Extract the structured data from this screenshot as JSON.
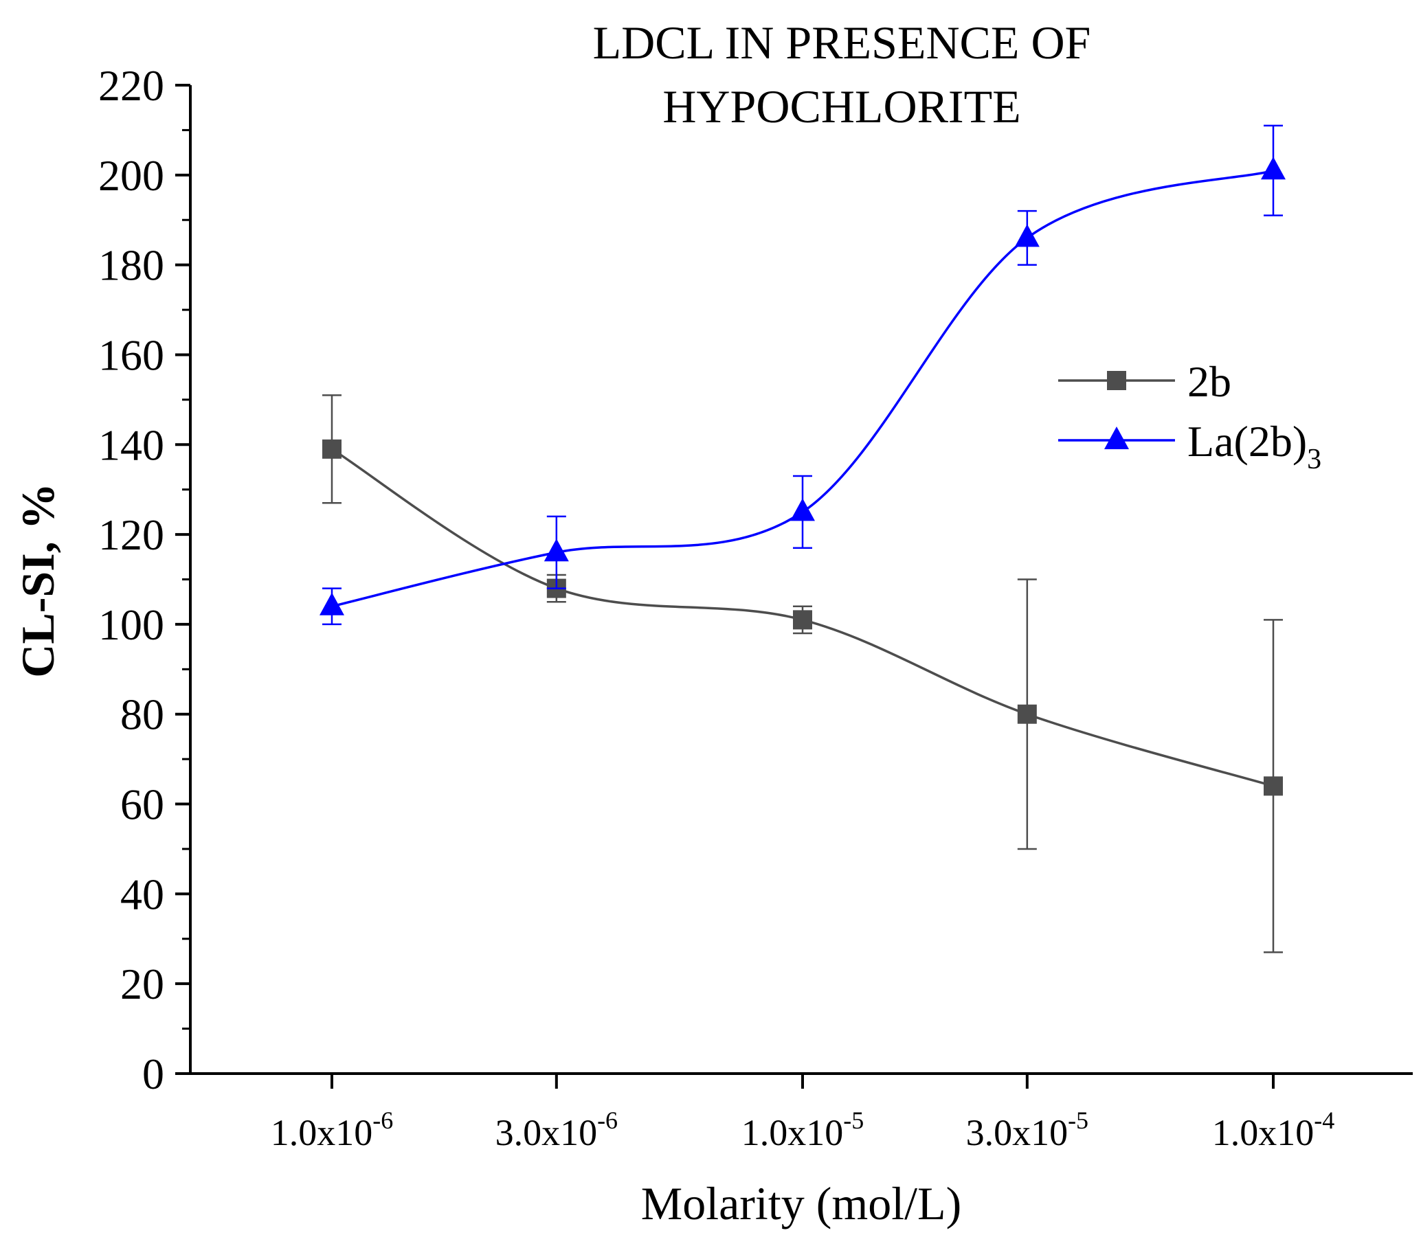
{
  "chart_data": {
    "type": "line",
    "title_lines": [
      "LDCL IN PRESENCE OF",
      "HYPOCHLORITE"
    ],
    "xlabel": "Molarity (mol/L)",
    "ylabel": "CL-SI, %",
    "x_scale": "log",
    "x": [
      1e-06,
      3e-06,
      1e-05,
      3e-05,
      0.0001
    ],
    "x_tick_labels": [
      {
        "mantissa": "1.0x10",
        "exp": "-6"
      },
      {
        "mantissa": "3.0x10",
        "exp": "-6"
      },
      {
        "mantissa": "1.0x10",
        "exp": "-5"
      },
      {
        "mantissa": "3.0x10",
        "exp": "-5"
      },
      {
        "mantissa": "1.0x10",
        "exp": "-4"
      }
    ],
    "ylim": [
      0,
      220
    ],
    "y_ticks": [
      0,
      20,
      40,
      60,
      80,
      100,
      120,
      140,
      160,
      180,
      200,
      220
    ],
    "grid": false,
    "legend_position": "right",
    "series": [
      {
        "name": "2b",
        "name_sub": "",
        "color": "#4d4d4d",
        "marker": "square",
        "values": [
          139,
          108,
          101,
          80,
          64
        ],
        "errors": [
          12,
          3,
          3,
          30,
          37
        ]
      },
      {
        "name": "La(2b)",
        "name_sub": "3",
        "color": "#0000ff",
        "marker": "triangle",
        "values": [
          104,
          116,
          125,
          186,
          201
        ],
        "errors": [
          4,
          8,
          8,
          6,
          10
        ]
      }
    ]
  }
}
